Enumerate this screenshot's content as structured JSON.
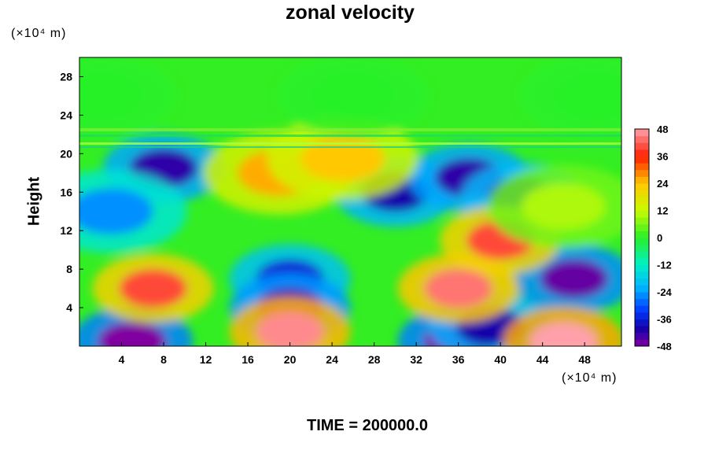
{
  "chart_data": {
    "type": "heatmap",
    "title": "zonal velocity",
    "xlabel": "",
    "ylabel": "Height",
    "x_unit": "(×10⁴ m)",
    "y_unit": "(×10⁴ m)",
    "footer": "TIME = 200000.0",
    "xlim": [
      0,
      51.5
    ],
    "ylim": [
      0,
      30
    ],
    "x_ticks": [
      4,
      8,
      12,
      16,
      20,
      24,
      28,
      32,
      36,
      40,
      44,
      48
    ],
    "y_ticks": [
      4,
      8,
      12,
      16,
      20,
      24,
      28
    ],
    "colorbar": {
      "ticks": [
        48,
        36,
        24,
        12,
        0,
        -12,
        -24,
        -36,
        -48
      ],
      "min": -48,
      "max": 48
    },
    "field_features": [
      {
        "x": 8,
        "y": 18.5,
        "value": -42
      },
      {
        "x": 30,
        "y": 16,
        "value": -40
      },
      {
        "x": 37,
        "y": 17.5,
        "value": -42
      },
      {
        "x": 42,
        "y": 15.5,
        "value": -38
      },
      {
        "x": 3,
        "y": 14,
        "value": -25
      },
      {
        "x": 20,
        "y": 7,
        "value": -36
      },
      {
        "x": 20,
        "y": 4,
        "value": -44
      },
      {
        "x": 47,
        "y": 7,
        "value": -46
      },
      {
        "x": 5,
        "y": 0.5,
        "value": -48
      },
      {
        "x": 36,
        "y": 0.5,
        "value": -48
      },
      {
        "x": 39,
        "y": 2,
        "value": -40
      },
      {
        "x": 7,
        "y": 6,
        "value": 40
      },
      {
        "x": 36,
        "y": 6,
        "value": 44
      },
      {
        "x": 20,
        "y": 1.5,
        "value": 46
      },
      {
        "x": 46,
        "y": 0.5,
        "value": 48
      },
      {
        "x": 19,
        "y": 18,
        "value": 26
      },
      {
        "x": 25,
        "y": 19.5,
        "value": 24
      },
      {
        "x": 40,
        "y": 11,
        "value": 40
      },
      {
        "x": 46,
        "y": 14.5,
        "value": 10
      },
      {
        "x": 2,
        "y": 26,
        "value": 0
      },
      {
        "x": 26,
        "y": 26,
        "value": 0
      },
      {
        "x": 49,
        "y": 26,
        "value": 0
      }
    ]
  }
}
